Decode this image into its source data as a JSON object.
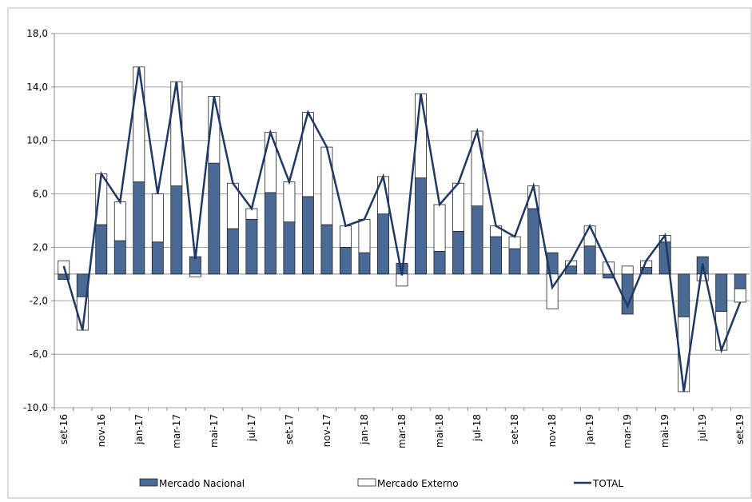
{
  "chart_data": {
    "type": "stacked-bar-line",
    "categories": [
      "set-16",
      null,
      "nov-16",
      null,
      "jan-17",
      null,
      "mar-17",
      null,
      "mai-17",
      null,
      "jul-17",
      null,
      "set-17",
      null,
      "nov-17",
      null,
      "jan-18",
      null,
      "mar-18",
      null,
      "mai-18",
      null,
      "jul-18",
      null,
      "set-18",
      null,
      "nov-18",
      null,
      "jan-19",
      null,
      "mar-19",
      null,
      "mai-19",
      null,
      "jul-19",
      null,
      "set-19"
    ],
    "series": [
      {
        "name": "Mercado Nacional",
        "kind": "bar",
        "color": "#4a6a96",
        "values": [
          -0.4,
          -1.7,
          3.7,
          2.5,
          6.9,
          2.4,
          6.6,
          1.3,
          8.3,
          3.4,
          4.1,
          6.1,
          3.9,
          5.8,
          3.7,
          2.0,
          1.6,
          4.5,
          0.8,
          7.2,
          1.7,
          3.2,
          5.1,
          2.8,
          1.9,
          4.9,
          1.6,
          0.6,
          2.1,
          -0.3,
          -3.0,
          0.5,
          2.4,
          -3.2,
          1.3,
          -2.8,
          -1.1
        ]
      },
      {
        "name": "Mercado Externo",
        "kind": "bar",
        "color": "#ffffff",
        "values": [
          1.0,
          -2.5,
          3.8,
          2.9,
          8.6,
          3.6,
          7.8,
          -0.2,
          5.0,
          3.4,
          0.8,
          4.5,
          3.0,
          6.3,
          5.8,
          1.6,
          2.5,
          2.8,
          -0.9,
          6.3,
          3.5,
          3.6,
          5.6,
          0.8,
          0.9,
          1.7,
          -2.6,
          0.4,
          1.5,
          0.9,
          0.6,
          0.5,
          0.5,
          -5.6,
          -0.5,
          -2.9,
          -1.0
        ]
      },
      {
        "name": "TOTAL",
        "kind": "line",
        "color": "#1f3864",
        "values": [
          0.6,
          -4.2,
          7.5,
          5.4,
          15.5,
          6.0,
          14.4,
          1.1,
          13.3,
          6.8,
          4.9,
          10.6,
          6.9,
          12.1,
          9.5,
          3.6,
          4.1,
          7.3,
          -0.1,
          13.5,
          5.2,
          6.8,
          10.7,
          3.6,
          2.8,
          6.6,
          -1.0,
          1.0,
          3.6,
          0.6,
          -2.4,
          1.0,
          2.9,
          -8.8,
          0.8,
          -5.7,
          -2.1
        ]
      }
    ],
    "ylim": [
      -10,
      18
    ],
    "yticks": [
      {
        "value": -10,
        "label": "-10,0"
      },
      {
        "value": -6,
        "label": "-6,0"
      },
      {
        "value": -2,
        "label": "-2,0"
      },
      {
        "value": 2,
        "label": "2,0"
      },
      {
        "value": 6,
        "label": "6,0"
      },
      {
        "value": 10,
        "label": "10,0"
      },
      {
        "value": 14,
        "label": "14,0"
      },
      {
        "value": 18,
        "label": "18,0"
      }
    ],
    "grid": true,
    "legend": "bottom"
  }
}
